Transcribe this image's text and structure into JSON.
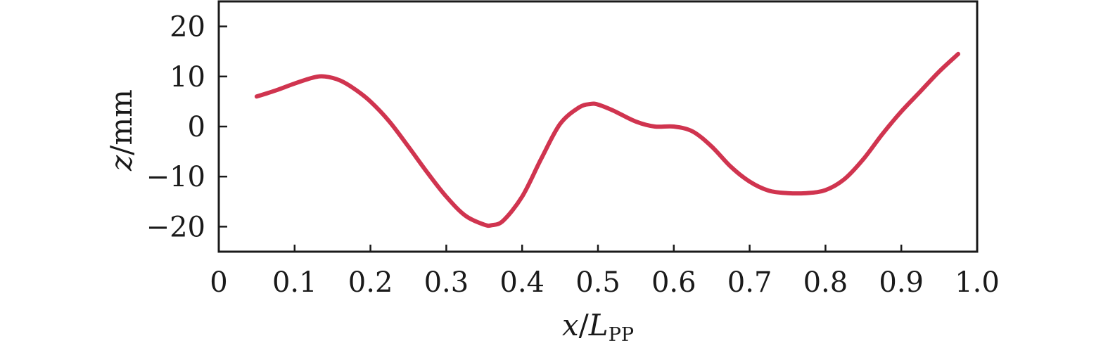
{
  "chart_data": {
    "type": "line",
    "xlabel": {
      "var": "x",
      "sep": "/",
      "sym": "L",
      "sub": "PP"
    },
    "ylabel": {
      "var": "z",
      "unit": "/mm"
    },
    "xlim": [
      0,
      1.0
    ],
    "ylim": [
      -25,
      25
    ],
    "xticks": [
      {
        "value": 0,
        "label": "0"
      },
      {
        "value": 0.1,
        "label": "0.1"
      },
      {
        "value": 0.2,
        "label": "0.2"
      },
      {
        "value": 0.3,
        "label": "0.3"
      },
      {
        "value": 0.4,
        "label": "0.4"
      },
      {
        "value": 0.5,
        "label": "0.5"
      },
      {
        "value": 0.6,
        "label": "0.6"
      },
      {
        "value": 0.7,
        "label": "0.7"
      },
      {
        "value": 0.8,
        "label": "0.8"
      },
      {
        "value": 0.9,
        "label": "0.9"
      },
      {
        "value": 1.0,
        "label": "1.0"
      }
    ],
    "yticks": [
      {
        "value": 20,
        "label": "20"
      },
      {
        "value": 10,
        "label": "10"
      },
      {
        "value": 0,
        "label": "0"
      },
      {
        "value": -10,
        "label": "−10"
      },
      {
        "value": -20,
        "label": "−20"
      }
    ],
    "grid": false,
    "legend": "none",
    "series": [
      {
        "color": "#d0344f",
        "x": [
          0.05,
          0.075,
          0.1,
          0.125,
          0.14,
          0.16,
          0.18,
          0.2,
          0.225,
          0.25,
          0.275,
          0.3,
          0.325,
          0.35,
          0.36,
          0.375,
          0.4,
          0.425,
          0.45,
          0.475,
          0.49,
          0.5,
          0.52,
          0.55,
          0.575,
          0.6,
          0.625,
          0.65,
          0.675,
          0.7,
          0.725,
          0.75,
          0.775,
          0.8,
          0.825,
          0.85,
          0.875,
          0.9,
          0.925,
          0.95,
          0.975
        ],
        "y": [
          6.0,
          7.2,
          8.6,
          9.8,
          10.0,
          9.2,
          7.4,
          5.0,
          1.0,
          -4.0,
          -9.2,
          -14.0,
          -17.8,
          -19.6,
          -19.7,
          -18.8,
          -14.0,
          -6.5,
          0.5,
          3.8,
          4.5,
          4.4,
          3.2,
          1.0,
          0.0,
          0.0,
          -1.0,
          -4.0,
          -8.0,
          -11.0,
          -12.8,
          -13.3,
          -13.3,
          -12.7,
          -10.5,
          -6.5,
          -1.5,
          3.0,
          7.0,
          11.0,
          14.5
        ]
      }
    ]
  }
}
